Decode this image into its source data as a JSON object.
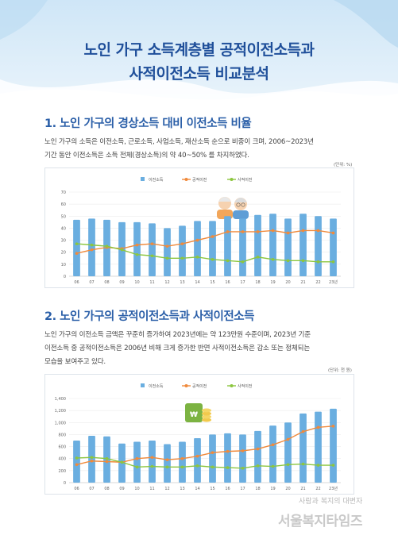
{
  "title_line1": "노인 가구 소득계층별 공적이전소득과",
  "title_line2": "사적이전소득 비교분석",
  "section1": {
    "heading": "1. 노인 가구의 경상소득 대비 이전소득 비율",
    "body_line1": "노인 가구의 소득은 이전소득, 근로소득, 사업소득, 재산소득 순으로 비중이 크며, 2006~2023년",
    "body_line2": "기간 동안 이전소득은 소득 전체(경상소득)의 약 40~50% 를 차지하였다.",
    "unit": "(단위: %)"
  },
  "section2": {
    "heading": "2. 노인 가구의 공적이전소득과 사적이전소득",
    "body_line1": "노인 가구의 이전소득 금액은 꾸준히 증가하여 2023년에는 약 123만원 수준이며, 2023년 기준",
    "body_line2": "이전소득 중 공적이전소득은 2006년 비해 크게 증가한 반면 사적이전소득은 감소 또는 정체되는",
    "body_line3": "모습을 보여주고 있다.",
    "unit": "(단위: 천 원)"
  },
  "watermark": {
    "small": "사람과 복지의 대변자",
    "big": "서울복지타임즈"
  },
  "colors": {
    "bar": "#6aaee0",
    "public": "#f08a3c",
    "private": "#8cc63f",
    "title": "#1f4f9a"
  },
  "chart_data": [
    {
      "type": "bar",
      "categories": [
        "06",
        "07",
        "08",
        "09",
        "10",
        "11",
        "12",
        "13",
        "14",
        "15",
        "16",
        "17",
        "18",
        "19",
        "20",
        "21",
        "22",
        "23년"
      ],
      "ylim": [
        0,
        70
      ],
      "yticks": [
        "0",
        "10",
        "20",
        "30",
        "40",
        "50",
        "60",
        "70"
      ],
      "legend": [
        "이전소득",
        "공적이전",
        "사적이전"
      ],
      "series": [
        {
          "name": "이전소득",
          "kind": "bar",
          "values": [
            47,
            48,
            47,
            45,
            45,
            44,
            40,
            42,
            46,
            46,
            50,
            48,
            51,
            52,
            48,
            52,
            50,
            48
          ]
        },
        {
          "name": "공적이전",
          "kind": "line",
          "values": [
            19,
            22,
            24,
            23,
            26,
            27,
            25,
            27,
            30,
            33,
            37,
            37,
            37,
            38,
            36,
            38,
            38,
            36
          ]
        },
        {
          "name": "사적이전",
          "kind": "line",
          "values": [
            27,
            26,
            25,
            22,
            18,
            17,
            15,
            15,
            16,
            14,
            13,
            12,
            16,
            14,
            13,
            13,
            12,
            12
          ]
        }
      ]
    },
    {
      "type": "bar",
      "categories": [
        "06",
        "07",
        "08",
        "09",
        "10",
        "11",
        "12",
        "13",
        "14",
        "15",
        "16",
        "17",
        "18",
        "19",
        "20",
        "21",
        "22",
        "23년"
      ],
      "ylim": [
        0,
        1400
      ],
      "yticks": [
        "0",
        "200",
        "400",
        "600",
        "800",
        "1,000",
        "1,200",
        "1,400"
      ],
      "legend": [
        "이전소득",
        "공적이전",
        "사적이전"
      ],
      "series": [
        {
          "name": "이전소득",
          "kind": "bar",
          "values": [
            700,
            780,
            770,
            650,
            680,
            700,
            640,
            680,
            740,
            800,
            820,
            800,
            860,
            950,
            1000,
            1150,
            1180,
            1230
          ]
        },
        {
          "name": "공적이전",
          "kind": "line",
          "values": [
            300,
            360,
            350,
            340,
            400,
            420,
            380,
            400,
            440,
            500,
            520,
            530,
            560,
            630,
            720,
            850,
            920,
            940
          ]
        },
        {
          "name": "사적이전",
          "kind": "line",
          "values": [
            410,
            420,
            400,
            340,
            260,
            270,
            260,
            260,
            280,
            260,
            250,
            240,
            280,
            270,
            300,
            310,
            290,
            290
          ]
        }
      ]
    }
  ]
}
